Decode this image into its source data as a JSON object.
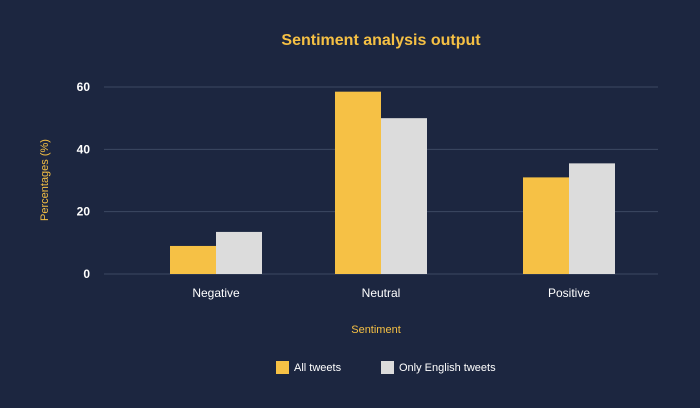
{
  "chart_data": {
    "type": "bar",
    "title": "Sentiment analysis output",
    "xlabel": "Sentiment",
    "ylabel": "Percentages (%)",
    "categories": [
      "Negative",
      "Neutral",
      "Positive"
    ],
    "ylim": [
      0,
      60
    ],
    "yticks": [
      0,
      20,
      40,
      60
    ],
    "grid": true,
    "legend_position": "bottom",
    "series": [
      {
        "name": "All tweets",
        "values": [
          9,
          58.5,
          31
        ],
        "color": "#f6c145"
      },
      {
        "name": "Only English tweets",
        "values": [
          13.5,
          50,
          35.5
        ],
        "color": "#dcdcdc"
      }
    ]
  }
}
